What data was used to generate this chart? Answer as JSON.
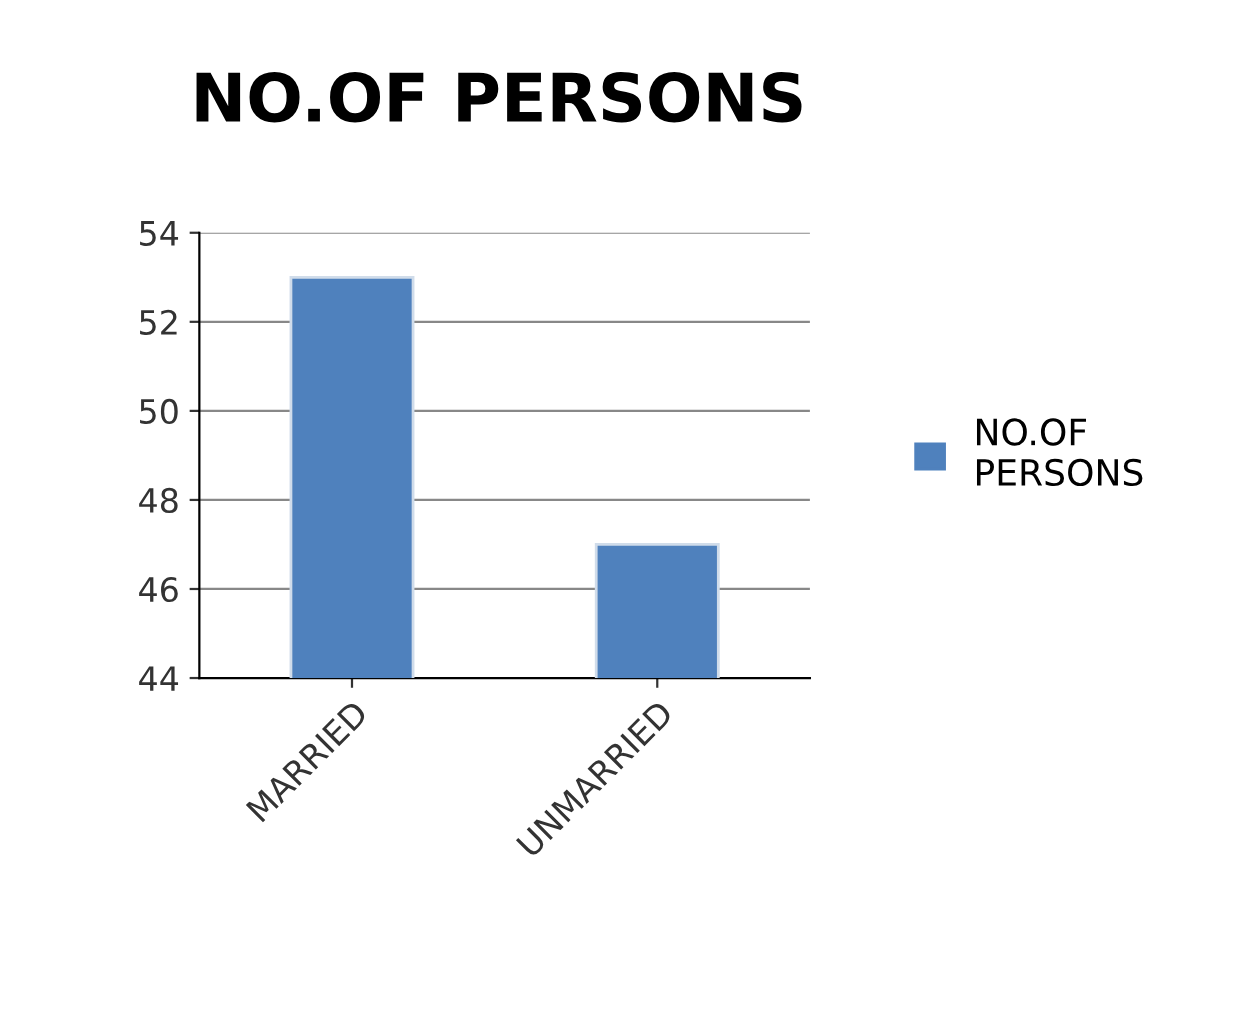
{
  "chart_data": {
    "type": "bar",
    "title": "NO.OF PERSONS",
    "categories": [
      "MARRIED",
      "UNMARRIED"
    ],
    "series": [
      {
        "name": "NO.OF\nPERSONS",
        "color": "#4f81bd",
        "values": [
          53,
          47
        ]
      }
    ],
    "ylim": [
      44,
      54
    ],
    "yticks": [
      44,
      46,
      48,
      50,
      52,
      54
    ],
    "grid": "y",
    "legend": "right"
  }
}
